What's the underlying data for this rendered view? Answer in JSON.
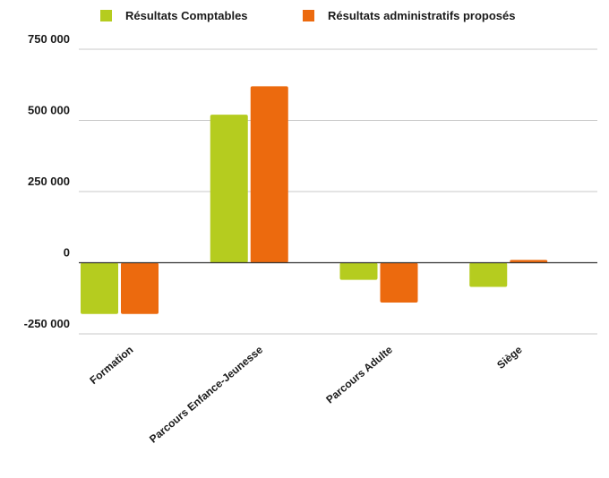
{
  "chart_data": {
    "type": "bar",
    "categories": [
      "Formation",
      "Parcours Enfance-Jeunesse",
      "Parcours Adulte",
      "Siège"
    ],
    "series": [
      {
        "name": "Résultats Comptables",
        "color": "#b5cc1f",
        "values": [
          -180000,
          520000,
          -60000,
          -85000
        ]
      },
      {
        "name": "Résultats administratifs proposés",
        "color": "#ec6a0e",
        "values": [
          -180000,
          620000,
          -140000,
          10000
        ]
      }
    ],
    "ylim": [
      -250000,
      750000
    ],
    "yticks": [
      750000,
      500000,
      250000,
      0,
      -250000
    ],
    "ytick_labels": [
      "750 000",
      "500 000",
      "250 000",
      "0",
      "-250 000"
    ],
    "grid": true,
    "legend_position": "top",
    "title": "",
    "xlabel": "",
    "ylabel": ""
  }
}
